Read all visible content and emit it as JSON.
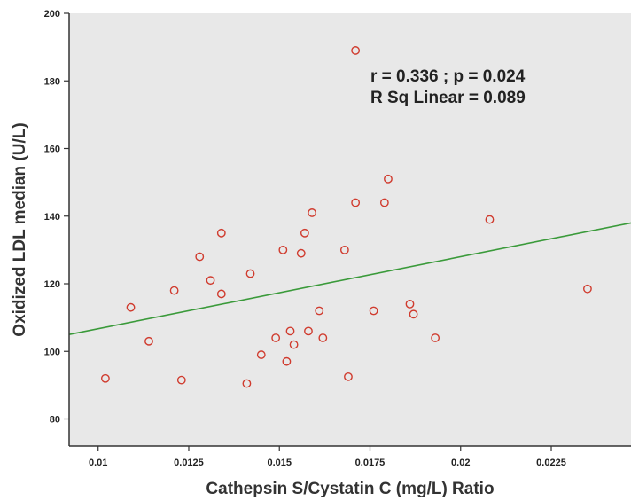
{
  "chart_data": {
    "type": "scatter",
    "title": "",
    "xlabel": "Cathepsin S/Cystatin C (mg/L) Ratio",
    "ylabel": "Oxidized LDL median (U/L)",
    "xlim": [
      0.0092,
      0.0247
    ],
    "ylim": [
      72,
      200
    ],
    "x_ticks": [
      0.01,
      0.0125,
      0.015,
      0.0175,
      0.02,
      0.0225
    ],
    "x_tick_labels": [
      "0.01",
      "0.0125",
      "0.015",
      "0.0175",
      "0.02",
      "0.0225"
    ],
    "y_ticks": [
      80,
      100,
      120,
      140,
      160,
      180,
      200
    ],
    "y_tick_labels": [
      "80",
      "100",
      "120",
      "140",
      "160",
      "180",
      "200"
    ],
    "grid": false,
    "plot_background": "#e8e8e8",
    "marker_color": "#d03b2e",
    "fit_line_color": "#3a9a3a",
    "points": [
      [
        0.0102,
        92
      ],
      [
        0.0109,
        113
      ],
      [
        0.0114,
        103
      ],
      [
        0.0121,
        118
      ],
      [
        0.0123,
        91.5
      ],
      [
        0.0128,
        128
      ],
      [
        0.0131,
        121
      ],
      [
        0.0134,
        135
      ],
      [
        0.0134,
        117
      ],
      [
        0.0141,
        90.5
      ],
      [
        0.0142,
        123
      ],
      [
        0.0145,
        99
      ],
      [
        0.0149,
        104
      ],
      [
        0.0151,
        130
      ],
      [
        0.0152,
        97
      ],
      [
        0.0153,
        106
      ],
      [
        0.0154,
        102
      ],
      [
        0.0156,
        129
      ],
      [
        0.0157,
        135
      ],
      [
        0.0158,
        106
      ],
      [
        0.0159,
        141
      ],
      [
        0.0161,
        112
      ],
      [
        0.0162,
        104
      ],
      [
        0.0168,
        130
      ],
      [
        0.0169,
        92.5
      ],
      [
        0.0171,
        144
      ],
      [
        0.0171,
        189
      ],
      [
        0.0176,
        112
      ],
      [
        0.0179,
        144
      ],
      [
        0.018,
        151
      ],
      [
        0.0186,
        114
      ],
      [
        0.0187,
        111
      ],
      [
        0.0193,
        104
      ],
      [
        0.0208,
        139
      ],
      [
        0.0235,
        118.5
      ]
    ],
    "fit_line": {
      "x": [
        0.0092,
        0.0247
      ],
      "y": [
        105,
        138
      ]
    },
    "annotations": [
      "r = 0.336 ; p = 0.024",
      "R Sq Linear = 0.089"
    ]
  }
}
